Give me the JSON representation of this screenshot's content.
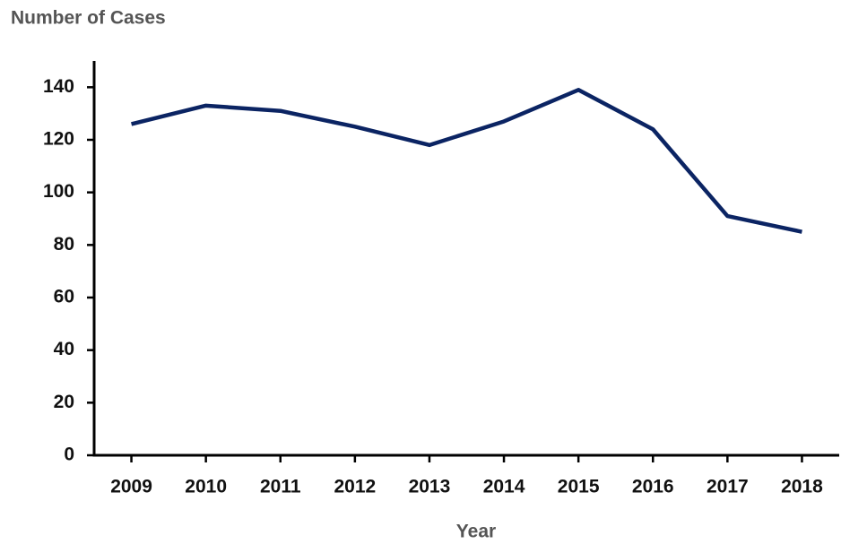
{
  "chart_data": {
    "type": "line",
    "title": "Number of Cases",
    "x_label": "Year",
    "categories": [
      "2009",
      "2010",
      "2011",
      "2012",
      "2013",
      "2014",
      "2015",
      "2016",
      "2017",
      "2018"
    ],
    "values": [
      126,
      133,
      131,
      125,
      118,
      127,
      139,
      124,
      91,
      85
    ],
    "color": "#0b2463",
    "ylim": [
      0,
      150
    ],
    "yticks": [
      0,
      20,
      40,
      60,
      80,
      100,
      120,
      140
    ],
    "grid": false
  }
}
